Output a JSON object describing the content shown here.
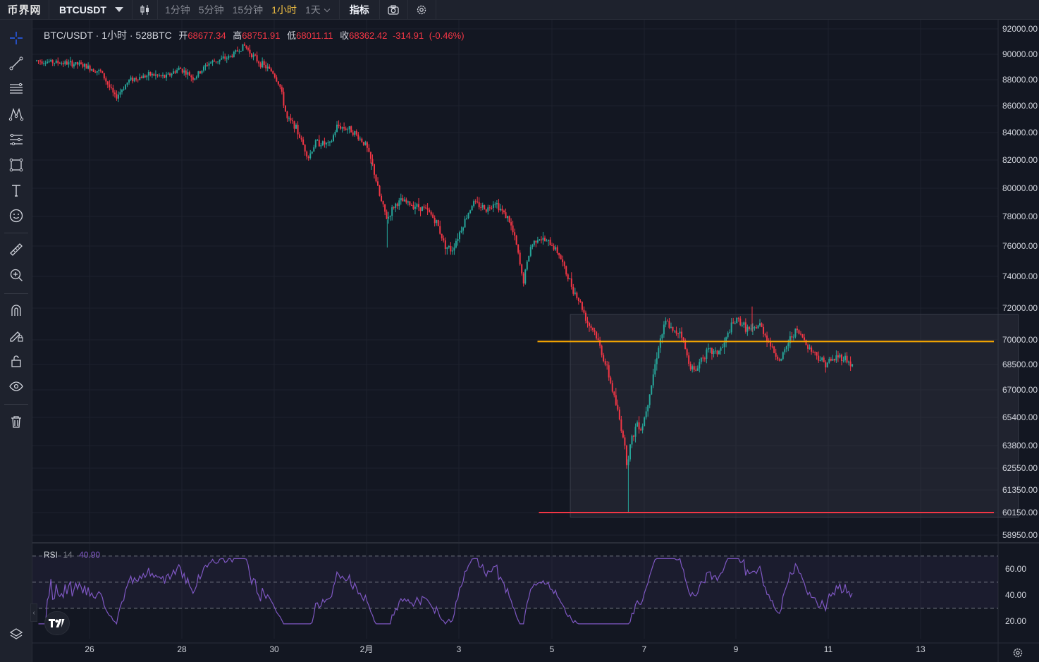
{
  "topbar": {
    "logo": "币界网",
    "symbol": "BTCUSDT",
    "intervals": [
      {
        "label": "1分钟",
        "active": false
      },
      {
        "label": "5分钟",
        "active": false
      },
      {
        "label": "15分钟",
        "active": false
      },
      {
        "label": "1小时",
        "active": true
      },
      {
        "label": "1天",
        "active": false
      }
    ],
    "indicators_label": "指标",
    "icons": [
      "candles-icon",
      "camera-icon",
      "settings-icon"
    ]
  },
  "left_toolbar": {
    "tools": [
      "crosshair-icon",
      "trendline-icon",
      "horizontal-lines-icon",
      "pattern-icon",
      "fib-icon",
      "rectangle-icon",
      "text-icon",
      "emoji-icon",
      "ruler-icon",
      "zoom-icon",
      "magnet-icon",
      "pencil-lock-icon",
      "lock-icon",
      "eye-icon",
      "trash-icon"
    ],
    "bottom": "layers-icon"
  },
  "legend": {
    "title": "BTC/USDT · 1小时 · 528BTC",
    "open_label": "开",
    "open": "68677.34",
    "high_label": "高",
    "high": "68751.91",
    "low_label": "低",
    "low": "68011.11",
    "close_label": "收",
    "close": "68362.42",
    "change": "-314.91",
    "change_pct": "(-0.46%)"
  },
  "rsi": {
    "name": "RSI",
    "length": "14",
    "value": "40.90"
  },
  "colors": {
    "up": "#26a69a",
    "down": "#f23645",
    "background": "#131722",
    "rsi": "#7e57c2",
    "resistance_line": "#f7a600",
    "support_line": "#f23645"
  },
  "chart_data": {
    "type": "candlestick",
    "price_axis_ticks": [
      "92000.00",
      "90000.00",
      "88000.00",
      "86000.00",
      "84000.00",
      "82000.00",
      "80000.00",
      "78000.00",
      "76000.00",
      "74000.00",
      "72000.00",
      "70000.00",
      "68500.00",
      "67000.00",
      "65400.00",
      "63800.00",
      "62550.00",
      "61350.00",
      "60150.00",
      "58950.00"
    ],
    "rsi_axis_ticks": [
      "60.00",
      "40.00",
      "20.00"
    ],
    "time_axis_ticks": [
      "26",
      "28",
      "30",
      "2月",
      "3",
      "5",
      "7",
      "9",
      "11",
      "13"
    ],
    "path": [
      [
        0,
        89500
      ],
      [
        6,
        89200
      ],
      [
        9,
        88600
      ],
      [
        11,
        86600
      ],
      [
        13,
        88000
      ],
      [
        16,
        88400
      ],
      [
        18,
        88200
      ],
      [
        20,
        88900
      ],
      [
        22,
        88100
      ],
      [
        24,
        89300
      ],
      [
        27,
        89800
      ],
      [
        29,
        90700
      ],
      [
        31,
        89400
      ],
      [
        33,
        88600
      ],
      [
        34,
        87500
      ],
      [
        35,
        85000
      ],
      [
        36,
        84600
      ],
      [
        37,
        83400
      ],
      [
        38,
        82200
      ],
      [
        39,
        83300
      ],
      [
        41,
        83100
      ],
      [
        42,
        84500
      ],
      [
        44,
        84200
      ],
      [
        46,
        83100
      ],
      [
        47,
        81500
      ],
      [
        48,
        79300
      ],
      [
        49,
        77800
      ],
      [
        50,
        78800
      ],
      [
        51,
        79100
      ],
      [
        52,
        78900
      ],
      [
        54,
        78600
      ],
      [
        55,
        78200
      ],
      [
        56,
        77500
      ],
      [
        57,
        76100
      ],
      [
        58,
        75700
      ],
      [
        59,
        76800
      ],
      [
        60,
        77900
      ],
      [
        61,
        79000
      ],
      [
        63,
        78500
      ],
      [
        64,
        79100
      ],
      [
        65,
        78400
      ],
      [
        66,
        77800
      ],
      [
        67,
        76200
      ],
      [
        68,
        73600
      ],
      [
        69,
        75900
      ],
      [
        70,
        76600
      ],
      [
        72,
        76100
      ],
      [
        73,
        75500
      ],
      [
        74,
        74200
      ],
      [
        75,
        73200
      ],
      [
        76,
        72300
      ],
      [
        77,
        71100
      ],
      [
        78,
        70500
      ],
      [
        79,
        69200
      ],
      [
        80,
        67800
      ],
      [
        81,
        66100
      ],
      [
        82,
        64300
      ],
      [
        82.5,
        62800
      ],
      [
        83,
        63900
      ],
      [
        84,
        65200
      ],
      [
        84.5,
        64700
      ],
      [
        85,
        65500
      ],
      [
        86,
        67500
      ],
      [
        87,
        69800
      ],
      [
        88,
        71200
      ],
      [
        89,
        70400
      ],
      [
        90,
        70600
      ],
      [
        91,
        68800
      ],
      [
        92,
        68000
      ],
      [
        93,
        69000
      ],
      [
        94,
        69300
      ],
      [
        95,
        69200
      ],
      [
        96,
        69600
      ],
      [
        97,
        70800
      ],
      [
        98,
        71300
      ],
      [
        99,
        70800
      ],
      [
        100,
        70500
      ],
      [
        101,
        71000
      ],
      [
        102,
        70200
      ],
      [
        103,
        69300
      ],
      [
        104,
        68700
      ],
      [
        105,
        69800
      ],
      [
        106,
        70600
      ],
      [
        107,
        70200
      ],
      [
        108,
        69500
      ],
      [
        109,
        69100
      ],
      [
        110,
        68600
      ],
      [
        111,
        68700
      ],
      [
        112,
        69000
      ],
      [
        113,
        68900
      ],
      [
        114,
        68400
      ]
    ],
    "wicks": [
      {
        "x": 82.7,
        "low": 60150
      },
      {
        "x": 100.0,
        "high": 72100
      },
      {
        "x": 46.8,
        "low": 81300
      },
      {
        "x": 49.0,
        "low": 75900
      }
    ],
    "levels": [
      {
        "price": 69900,
        "color": "orange",
        "x_start": 70.0
      },
      {
        "price": 60150,
        "color": "red",
        "x_start": 70.2
      }
    ],
    "range_box": {
      "x_start": 74.0,
      "x_end": 138.0,
      "price_top": 71600,
      "price_bottom": 59900
    },
    "rsi_levels": [
      70,
      50,
      30
    ],
    "last_rsi": 40.9
  }
}
